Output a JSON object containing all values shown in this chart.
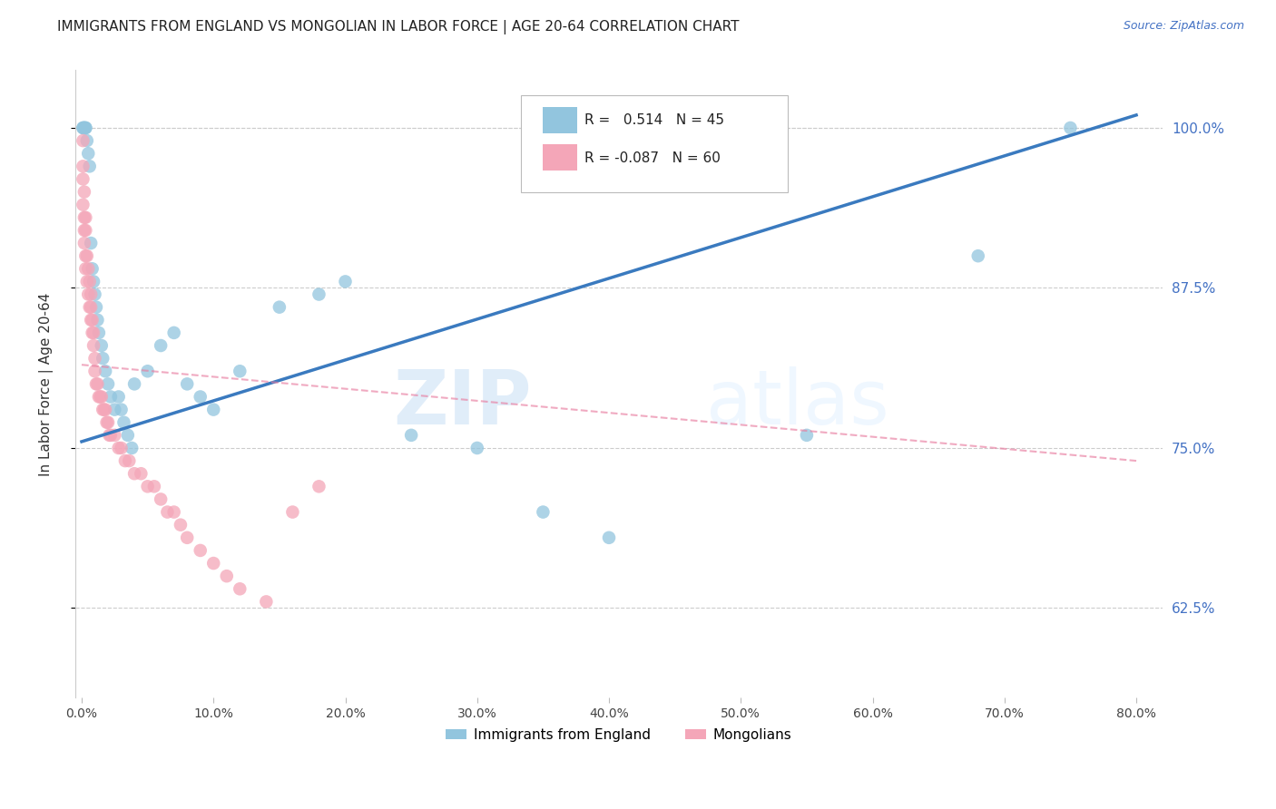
{
  "title": "IMMIGRANTS FROM ENGLAND VS MONGOLIAN IN LABOR FORCE | AGE 20-64 CORRELATION CHART",
  "source": "Source: ZipAtlas.com",
  "ylabel": "In Labor Force | Age 20-64",
  "xlim": [
    -0.005,
    0.82
  ],
  "ylim": [
    0.555,
    1.045
  ],
  "yticks": [
    0.625,
    0.75,
    0.875,
    1.0
  ],
  "ytick_labels": [
    "62.5%",
    "75.0%",
    "87.5%",
    "100.0%"
  ],
  "xticks": [
    0.0,
    0.1,
    0.2,
    0.3,
    0.4,
    0.5,
    0.6,
    0.7,
    0.8
  ],
  "xtick_labels": [
    "0.0%",
    "10.0%",
    "20.0%",
    "30.0%",
    "40.0%",
    "50.0%",
    "60.0%",
    "70.0%",
    "80.0%"
  ],
  "england_R": 0.514,
  "england_N": 45,
  "mongolian_R": -0.087,
  "mongolian_N": 60,
  "england_color": "#92c5de",
  "mongolian_color": "#f4a6b8",
  "england_line_color": "#3a7abf",
  "mongolian_line_color": "#e87da0",
  "watermark_color": "#ddeeff",
  "england_x": [
    0.001,
    0.001,
    0.002,
    0.002,
    0.003,
    0.003,
    0.004,
    0.005,
    0.006,
    0.007,
    0.008,
    0.009,
    0.01,
    0.011,
    0.012,
    0.013,
    0.015,
    0.016,
    0.018,
    0.02,
    0.022,
    0.025,
    0.028,
    0.03,
    0.032,
    0.035,
    0.038,
    0.04,
    0.05,
    0.06,
    0.07,
    0.08,
    0.09,
    0.1,
    0.12,
    0.15,
    0.18,
    0.2,
    0.25,
    0.3,
    0.35,
    0.4,
    0.55,
    0.68,
    0.75
  ],
  "england_y": [
    1.0,
    1.0,
    1.0,
    1.0,
    1.0,
    1.0,
    0.99,
    0.98,
    0.97,
    0.91,
    0.89,
    0.88,
    0.87,
    0.86,
    0.85,
    0.84,
    0.83,
    0.82,
    0.81,
    0.8,
    0.79,
    0.78,
    0.79,
    0.78,
    0.77,
    0.76,
    0.75,
    0.8,
    0.81,
    0.83,
    0.84,
    0.8,
    0.79,
    0.78,
    0.81,
    0.86,
    0.87,
    0.88,
    0.76,
    0.75,
    0.7,
    0.68,
    0.76,
    0.9,
    1.0
  ],
  "mongolian_x": [
    0.001,
    0.001,
    0.001,
    0.001,
    0.002,
    0.002,
    0.002,
    0.002,
    0.003,
    0.003,
    0.003,
    0.003,
    0.004,
    0.004,
    0.005,
    0.005,
    0.006,
    0.006,
    0.007,
    0.007,
    0.007,
    0.008,
    0.008,
    0.009,
    0.009,
    0.01,
    0.01,
    0.011,
    0.012,
    0.013,
    0.014,
    0.015,
    0.016,
    0.017,
    0.018,
    0.019,
    0.02,
    0.021,
    0.022,
    0.025,
    0.028,
    0.03,
    0.033,
    0.036,
    0.04,
    0.045,
    0.05,
    0.055,
    0.06,
    0.065,
    0.07,
    0.075,
    0.08,
    0.09,
    0.1,
    0.11,
    0.12,
    0.14,
    0.16,
    0.18
  ],
  "mongolian_y": [
    0.99,
    0.97,
    0.96,
    0.94,
    0.95,
    0.93,
    0.92,
    0.91,
    0.93,
    0.92,
    0.9,
    0.89,
    0.9,
    0.88,
    0.89,
    0.87,
    0.88,
    0.86,
    0.87,
    0.86,
    0.85,
    0.85,
    0.84,
    0.84,
    0.83,
    0.82,
    0.81,
    0.8,
    0.8,
    0.79,
    0.79,
    0.79,
    0.78,
    0.78,
    0.78,
    0.77,
    0.77,
    0.76,
    0.76,
    0.76,
    0.75,
    0.75,
    0.74,
    0.74,
    0.73,
    0.73,
    0.72,
    0.72,
    0.71,
    0.7,
    0.7,
    0.69,
    0.68,
    0.67,
    0.66,
    0.65,
    0.64,
    0.63,
    0.7,
    0.72
  ],
  "eng_line_x0": 0.0,
  "eng_line_x1": 0.8,
  "eng_line_y0": 0.755,
  "eng_line_y1": 1.01,
  "mon_line_x0": 0.0,
  "mon_line_x1": 0.8,
  "mon_line_y0": 0.815,
  "mon_line_y1": 0.74
}
